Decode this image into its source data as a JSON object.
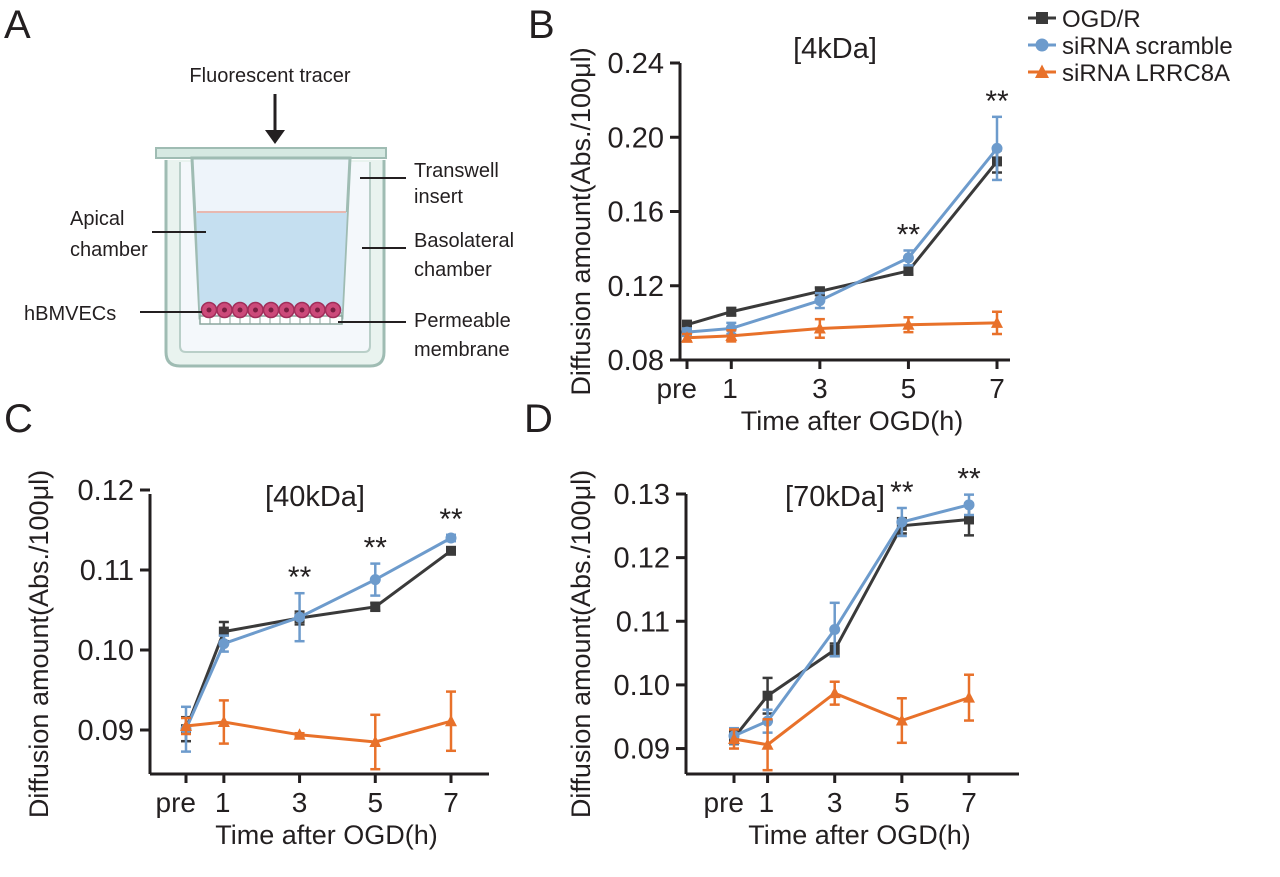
{
  "figure": {
    "panel_labels": [
      "A",
      "B",
      "C",
      "D"
    ],
    "legend": [
      {
        "name": "OGD/R",
        "color": "#3a3a3a",
        "marker": "square"
      },
      {
        "name": "siRNA scramble",
        "color": "#6d9bcc",
        "marker": "circle"
      },
      {
        "name": "siRNA LRRC8A",
        "color": "#e8712a",
        "marker": "triangle"
      }
    ]
  },
  "diagram": {
    "tracer_label": "Fluorescent tracer",
    "transwell_label": [
      "Transwell",
      "insert"
    ],
    "apical_label": [
      "Apical",
      "chamber"
    ],
    "basolateral_label": [
      "Basolateral",
      "chamber"
    ],
    "cells_label": "hBMVECs",
    "membrane_label": [
      "Permeable",
      "membrane"
    ]
  },
  "chart_data": [
    {
      "panel": "B",
      "type": "line",
      "title": "[4kDa]",
      "xlabel": "Time after OGD(h)",
      "ylabel": "Diffusion amount(Abs./100μl)",
      "categories": [
        "pre",
        "1",
        "3",
        "5",
        "7"
      ],
      "x": [
        0,
        1,
        3,
        5,
        7
      ],
      "ylim": [
        0.08,
        0.24
      ],
      "yticks": [
        "0.08",
        "0.12",
        "0.16",
        "0.20",
        "0.24"
      ],
      "grid": false,
      "series": [
        {
          "name": "OGD/R",
          "values": [
            0.099,
            0.106,
            0.117,
            0.128,
            0.187
          ],
          "errors": [
            0.002,
            0.002,
            0.002,
            0.002,
            0.006
          ]
        },
        {
          "name": "siRNA scramble",
          "values": [
            0.095,
            0.097,
            0.112,
            0.135,
            0.194
          ],
          "errors": [
            0.002,
            0.003,
            0.004,
            0.004,
            0.017
          ]
        },
        {
          "name": "siRNA LRRC8A",
          "values": [
            0.092,
            0.093,
            0.097,
            0.099,
            0.1
          ],
          "errors": [
            0.002,
            0.003,
            0.005,
            0.004,
            0.006
          ]
        }
      ],
      "annotations": [
        {
          "x": 5,
          "text": "**"
        },
        {
          "x": 7,
          "text": "**"
        }
      ]
    },
    {
      "panel": "C",
      "type": "line",
      "title": "[40kDa]",
      "xlabel": "Time after OGD(h)",
      "ylabel": "Diffusion amount(Abs./100μl)",
      "categories": [
        "pre",
        "1",
        "3",
        "5",
        "7"
      ],
      "x": [
        0,
        1,
        3,
        5,
        7
      ],
      "ylim": [
        0.0845,
        0.1195
      ],
      "yticks": [
        "0.09",
        "0.10",
        "0.11",
        "0.12"
      ],
      "grid": false,
      "series": [
        {
          "name": "OGD/R",
          "values": [
            0.0901,
            0.1023,
            0.104,
            0.1054,
            0.1124
          ],
          "errors": [
            0.0015,
            0.0012,
            0.0008,
            0.0005,
            0.0002
          ]
        },
        {
          "name": "siRNA scramble",
          "values": [
            0.0901,
            0.1008,
            0.1041,
            0.1088,
            0.114
          ],
          "errors": [
            0.0028,
            0.001,
            0.003,
            0.002,
            0.0004
          ]
        },
        {
          "name": "siRNA LRRC8A",
          "values": [
            0.0905,
            0.091,
            0.0894,
            0.0885,
            0.0911
          ],
          "errors": [
            0.001,
            0.0027,
            0.0002,
            0.0034,
            0.0037
          ]
        }
      ],
      "annotations": [
        {
          "x": 3,
          "text": "**"
        },
        {
          "x": 5,
          "text": "**"
        },
        {
          "x": 7,
          "text": "**"
        }
      ]
    },
    {
      "panel": "D",
      "type": "line",
      "title": "[70kDa]",
      "xlabel": "Time after OGD(h)",
      "ylabel": "Diffusion amount(Abs./100μl)",
      "categories": [
        "pre",
        "1",
        "3",
        "5",
        "7"
      ],
      "x": [
        0,
        1,
        3,
        5,
        7
      ],
      "ylim": [
        0.086,
        0.13
      ],
      "yticks": [
        "0.09",
        "0.10",
        "0.11",
        "0.12",
        "0.13"
      ],
      "grid": false,
      "series": [
        {
          "name": "OGD/R",
          "values": [
            0.0917,
            0.0983,
            0.1055,
            0.125,
            0.126
          ],
          "errors": [
            0.001,
            0.0028,
            0.001,
            0.0012,
            0.0025
          ]
        },
        {
          "name": "siRNA scramble",
          "values": [
            0.092,
            0.0943,
            0.1087,
            0.1256,
            0.1283
          ],
          "errors": [
            0.0012,
            0.0018,
            0.0042,
            0.0022,
            0.0016
          ]
        },
        {
          "name": "siRNA LRRC8A",
          "values": [
            0.0915,
            0.0906,
            0.0987,
            0.0944,
            0.098
          ],
          "errors": [
            0.0015,
            0.004,
            0.0018,
            0.0035,
            0.0036
          ]
        }
      ],
      "annotations": [
        {
          "x": 5,
          "text": "**"
        },
        {
          "x": 7,
          "text": "**"
        }
      ]
    }
  ]
}
